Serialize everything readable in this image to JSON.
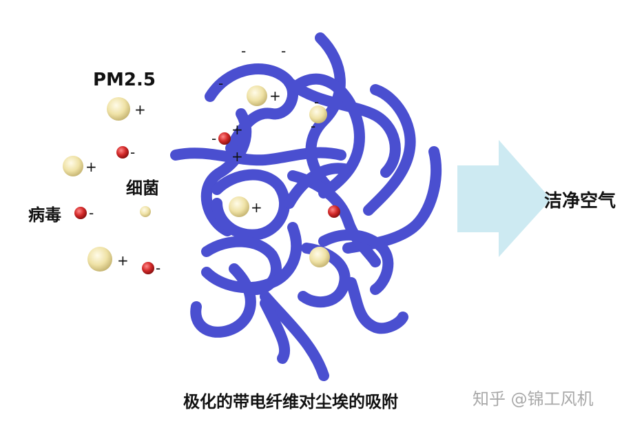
{
  "labels": {
    "pm25": "PM2.5",
    "bacteria": "细菌",
    "virus": "病毒",
    "clean_air": "洁净空气",
    "caption": "极化的带电纤维对尘埃的吸附",
    "watermark": "知乎 @锦工风机"
  },
  "signs": {
    "plus": "+",
    "minus": "-"
  },
  "colors": {
    "fiber": "#4a4fd0",
    "dust_particle": "#efe2a6",
    "charged_particle": "#d42a2a",
    "arrow": "#cdeaf2",
    "text": "#111111",
    "watermark": "#a9a9a9"
  }
}
